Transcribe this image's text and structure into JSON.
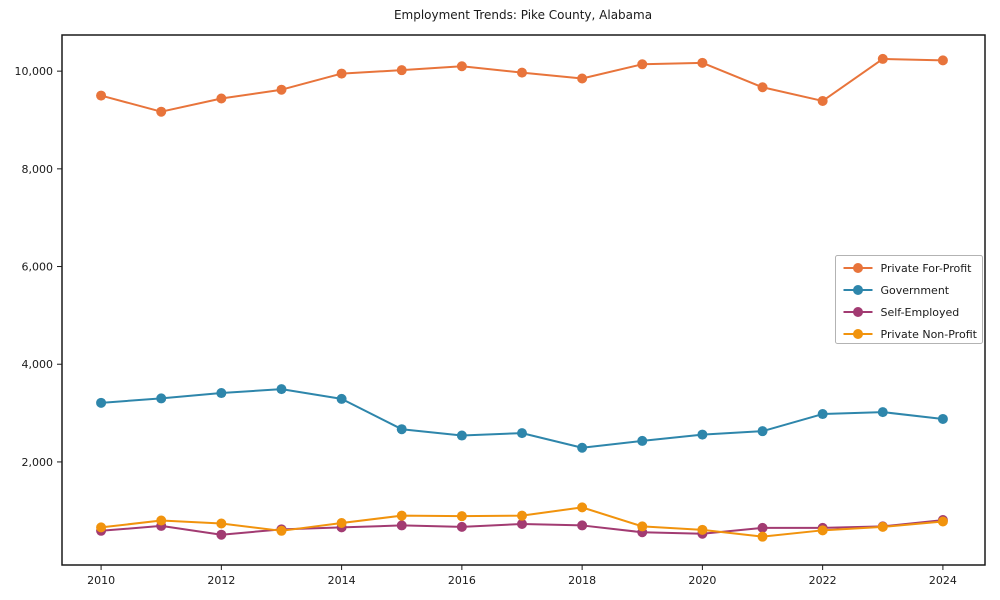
{
  "title": "Employment Trends: Pike County, Alabama",
  "chart_data": {
    "type": "line",
    "title": "Employment Trends: Pike County, Alabama",
    "xlabel": "",
    "ylabel": "",
    "x": [
      2010,
      2011,
      2012,
      2013,
      2014,
      2015,
      2016,
      2017,
      2018,
      2019,
      2020,
      2021,
      2022,
      2023,
      2024
    ],
    "x_ticks": [
      2010,
      2012,
      2014,
      2016,
      2018,
      2020,
      2022,
      2024
    ],
    "x_tick_labels": [
      "2010",
      "2012",
      "2014",
      "2016",
      "2018",
      "2020",
      "2022",
      "2024"
    ],
    "y_ticks": [
      2000,
      4000,
      6000,
      8000,
      10000
    ],
    "y_tick_labels": [
      "2,000",
      "4,000",
      "6,000",
      "8,000",
      "10,000"
    ],
    "xlim": [
      2009.35,
      2024.7
    ],
    "ylim": [
      -110,
      10740
    ],
    "grid": false,
    "legend_position": "right-inside",
    "series": [
      {
        "name": "Private For-Profit",
        "color": "#E8743B",
        "values": [
          9500,
          9170,
          9440,
          9620,
          9950,
          10020,
          10100,
          9970,
          9850,
          10140,
          10170,
          9670,
          9390,
          10250,
          10220
        ]
      },
      {
        "name": "Government",
        "color": "#2E86AB",
        "values": [
          3210,
          3300,
          3410,
          3490,
          3290,
          2670,
          2540,
          2590,
          2290,
          2430,
          2560,
          2630,
          2980,
          3020,
          2880
        ]
      },
      {
        "name": "Self-Employed",
        "color": "#A23B72",
        "values": [
          590,
          690,
          510,
          620,
          660,
          700,
          670,
          730,
          700,
          560,
          530,
          650,
          650,
          680,
          810
        ]
      },
      {
        "name": "Private Non-Profit",
        "color": "#F1930D",
        "values": [
          660,
          800,
          740,
          590,
          750,
          900,
          890,
          900,
          1070,
          680,
          610,
          470,
          600,
          670,
          780
        ]
      }
    ]
  },
  "colors": {
    "axis": "#1a1a1a",
    "legend_border": "#b3b3b3",
    "background": "#ffffff"
  }
}
